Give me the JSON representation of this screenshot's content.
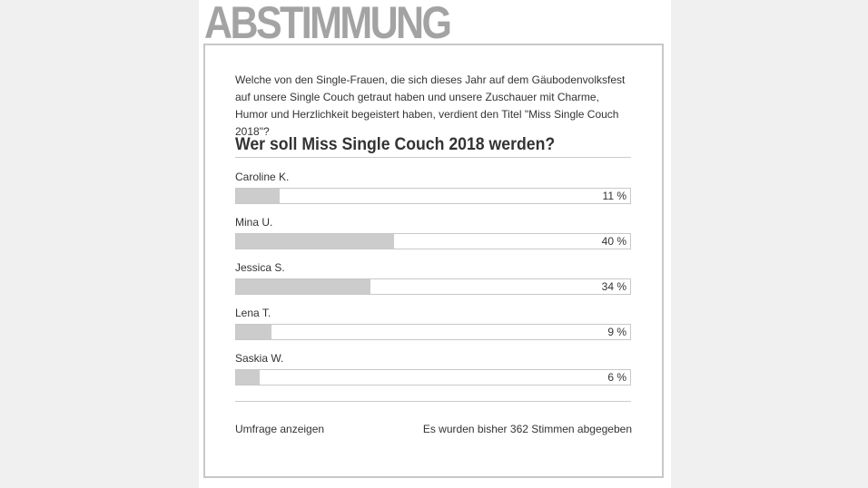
{
  "header": {
    "logo_text": "ABSTIMMUNG"
  },
  "poll": {
    "intro": "Welche von den Single-Frauen, die sich dieses Jahr auf dem Gäubodenvolksfest auf unsere Single Couch getraut haben und unsere Zuschauer mit Charme, Humor und Herzlichkeit begeistert haben, verdient den Titel \"Miss Single Couch 2018\"?",
    "question": "Wer soll Miss Single Couch 2018 werden?",
    "options": [
      {
        "label": "Caroline K.",
        "percent": 11,
        "percent_text": "11 %"
      },
      {
        "label": "Mina U.",
        "percent": 40,
        "percent_text": "40 %"
      },
      {
        "label": "Jessica S.",
        "percent": 34,
        "percent_text": "34 %"
      },
      {
        "label": "Lena T.",
        "percent": 9,
        "percent_text": "9 %"
      },
      {
        "label": "Saskia W.",
        "percent": 6,
        "percent_text": "6 %"
      }
    ],
    "show_poll_link": "Umfrage anzeigen",
    "vote_count_text": "Es wurden bisher 362 Stimmen abgegeben"
  },
  "colors": {
    "bar_fill": "#cccccc",
    "border": "#c8c8c8",
    "logo": "#a3a3a3",
    "text": "#333333"
  }
}
